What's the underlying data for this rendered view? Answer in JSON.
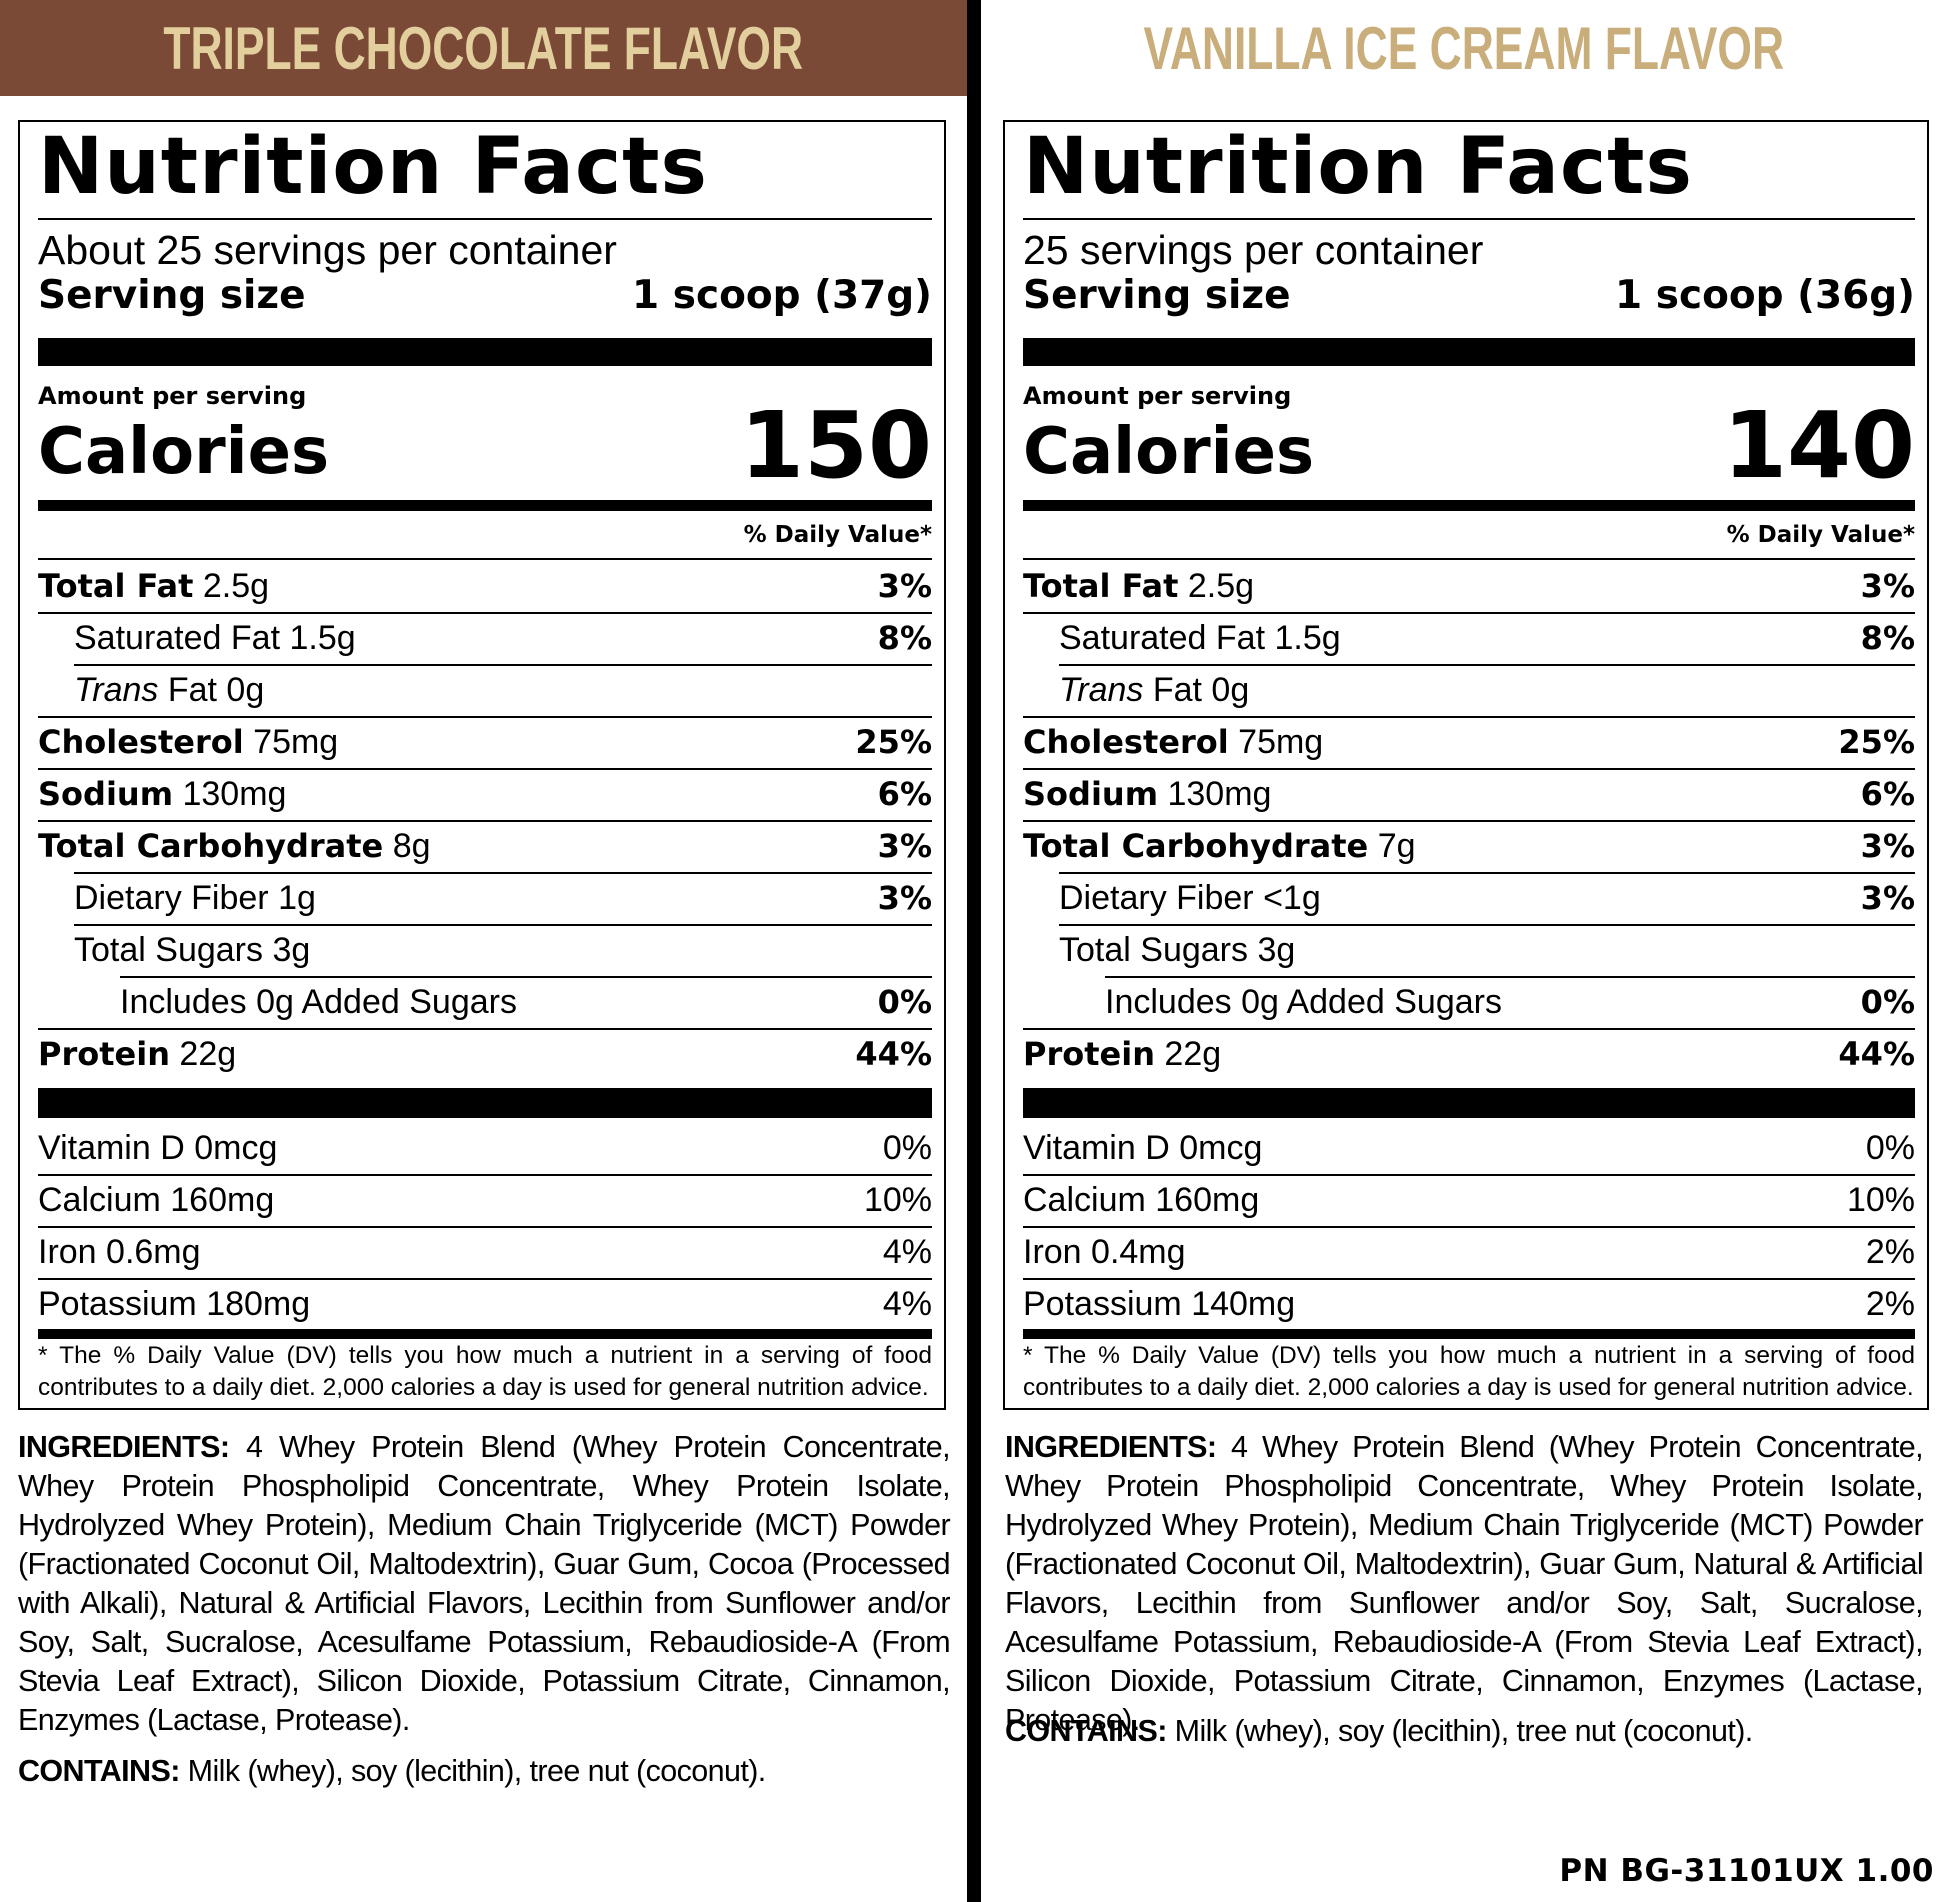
{
  "colors": {
    "left_banner_bg": "#7a4a36",
    "left_banner_text": "#e3cf9e",
    "right_banner_bg": "#ffffff",
    "right_banner_text": "#c9ae7c"
  },
  "common": {
    "nutrition_facts_title": "Nutrition Facts",
    "serving_size_label": "Serving size",
    "amount_per_serving": "Amount per serving",
    "calories_label": "Calories",
    "daily_value_header": "% Daily Value*",
    "footnote": "* The % Daily Value (DV) tells you how much a nutrient in a serving of food contributes to a daily diet. 2,000 calories a day is used for general nutrition advice.",
    "ingredients_label": "INGREDIENTS:",
    "contains_label": "CONTAINS:",
    "contains_text": "Milk (whey), soy (lecithin), tree nut (coconut).",
    "labels": {
      "total_fat": "Total Fat",
      "saturated_fat": "Saturated Fat",
      "trans_italic": "Trans",
      "trans_rest": "Fat",
      "cholesterol": "Cholesterol",
      "sodium": "Sodium",
      "total_carbohydrate": "Total Carbohydrate",
      "dietary_fiber": "Dietary Fiber",
      "total_sugars": "Total Sugars",
      "includes_added_sugars": "Includes 0g Added Sugars",
      "protein": "Protein",
      "vitamin_d": "Vitamin D",
      "calcium": "Calcium",
      "iron": "Iron",
      "potassium": "Potassium"
    }
  },
  "panels": {
    "chocolate": {
      "flavor_title": "TRIPLE CHOCOLATE FLAVOR",
      "servings_per_container": "About 25 servings per container",
      "serving_size": "1 scoop (37g)",
      "calories": "150",
      "total_fat": {
        "amount": "2.5g",
        "dv": "3%"
      },
      "saturated_fat": {
        "amount": "1.5g",
        "dv": "8%"
      },
      "trans_fat": {
        "amount": "0g"
      },
      "cholesterol": {
        "amount": "75mg",
        "dv": "25%"
      },
      "sodium": {
        "amount": "130mg",
        "dv": "6%"
      },
      "total_carbohydrate": {
        "amount": "8g",
        "dv": "3%"
      },
      "dietary_fiber": {
        "amount": "1g",
        "dv": "3%"
      },
      "total_sugars": {
        "amount": "3g"
      },
      "added_sugars": {
        "dv": "0%"
      },
      "protein": {
        "amount": "22g",
        "dv": "44%"
      },
      "vitamin_d": {
        "amount": "0mcg",
        "dv": "0%"
      },
      "calcium": {
        "amount": "160mg",
        "dv": "10%"
      },
      "iron": {
        "amount": "0.6mg",
        "dv": "4%"
      },
      "potassium": {
        "amount": "180mg",
        "dv": "4%"
      },
      "ingredients": "4 Whey Protein Blend (Whey Protein Concentrate, Whey Protein Phospholipid Concentrate, Whey Protein Isolate, Hydrolyzed Whey Protein), Medium Chain Triglyceride (MCT) Powder (Fractionated Coconut Oil, Maltodextrin), Guar Gum, Cocoa (Processed with Alkali), Natural & Artificial Flavors, Lecithin from Sunflower and/or Soy, Salt, Sucralose, Acesulfame Potassium, Rebaudioside-A (From Stevia Leaf Extract), Silicon Dioxide, Potassium Citrate, Cinnamon, Enzymes (Lactase, Protease)."
    },
    "vanilla": {
      "flavor_title": "VANILLA ICE CREAM FLAVOR",
      "servings_per_container": "25 servings per container",
      "serving_size": "1 scoop (36g)",
      "calories": "140",
      "total_fat": {
        "amount": "2.5g",
        "dv": "3%"
      },
      "saturated_fat": {
        "amount": "1.5g",
        "dv": "8%"
      },
      "trans_fat": {
        "amount": "0g"
      },
      "cholesterol": {
        "amount": "75mg",
        "dv": "25%"
      },
      "sodium": {
        "amount": "130mg",
        "dv": "6%"
      },
      "total_carbohydrate": {
        "amount": "7g",
        "dv": "3%"
      },
      "dietary_fiber": {
        "amount": "<1g",
        "dv": "3%"
      },
      "total_sugars": {
        "amount": "3g"
      },
      "added_sugars": {
        "dv": "0%"
      },
      "protein": {
        "amount": "22g",
        "dv": "44%"
      },
      "vitamin_d": {
        "amount": "0mcg",
        "dv": "0%"
      },
      "calcium": {
        "amount": "160mg",
        "dv": "10%"
      },
      "iron": {
        "amount": "0.4mg",
        "dv": "2%"
      },
      "potassium": {
        "amount": "140mg",
        "dv": "2%"
      },
      "ingredients": "4 Whey Protein Blend (Whey Protein Concentrate, Whey Protein Phospholipid Concentrate, Whey Protein Isolate, Hydrolyzed Whey Protein), Medium Chain Triglyceride (MCT) Powder (Fractionated Coconut Oil, Maltodextrin), Guar Gum, Natural & Artificial Flavors, Lecithin from Sunflower and/or Soy, Salt, Sucralose, Acesulfame Potassium, Rebaudioside-A (From Stevia Leaf Extract), Silicon Dioxide, Potassium Citrate, Cinnamon, Enzymes (Lactase, Protease)."
    }
  },
  "part_number": "PN BG-31101UX 1.00"
}
